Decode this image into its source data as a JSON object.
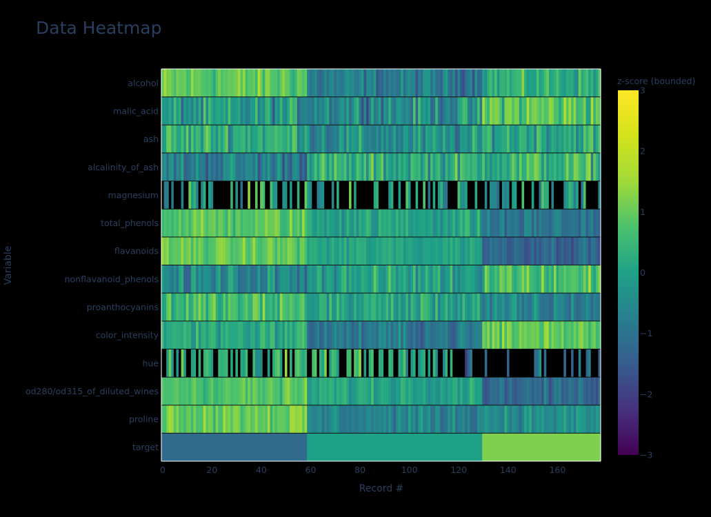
{
  "chart_data": {
    "type": "heatmap",
    "title": "Data Heatmap",
    "xlabel": "Record #",
    "ylabel": "Variable",
    "xlim": [
      0,
      177
    ],
    "x_ticks": [
      "0",
      "20",
      "40",
      "60",
      "80",
      "100",
      "120",
      "140",
      "160"
    ],
    "x_tick_values": [
      0,
      20,
      40,
      60,
      80,
      100,
      120,
      140,
      160
    ],
    "rows": [
      "alcohol",
      "malic_acid",
      "ash",
      "alcalinity_of_ash",
      "magnesium",
      "total_phenols",
      "flavanoids",
      "nonflavanoid_phenols",
      "proanthocyanins",
      "color_intensity",
      "hue",
      "od280/od315_of_diluted_wines",
      "proline",
      "target"
    ],
    "colorscale": "Viridis",
    "colorbar": {
      "title": "z-score (bounded)",
      "range": [
        -3,
        3
      ],
      "ticks": [
        "3",
        "2",
        "1",
        "0",
        "−1",
        "−2",
        "−3"
      ],
      "tick_values": [
        3,
        2,
        1,
        0,
        -1,
        -2,
        -3
      ]
    },
    "masked_color": "#000000",
    "row_profiles": {
      "alcohol": {
        "segments": [
          [
            0,
            59,
            0.9
          ],
          [
            59,
            130,
            -0.85
          ],
          [
            130,
            178,
            0.3
          ]
        ],
        "noise": 0.55
      },
      "malic_acid": {
        "segments": [
          [
            0,
            59,
            -0.3
          ],
          [
            59,
            130,
            -0.4
          ],
          [
            130,
            178,
            0.9
          ]
        ],
        "noise": 0.75
      },
      "ash": {
        "segments": [
          [
            0,
            59,
            0.3
          ],
          [
            59,
            130,
            -0.45
          ],
          [
            130,
            178,
            0.2
          ]
        ],
        "noise": 0.7
      },
      "alcalinity_of_ash": {
        "segments": [
          [
            0,
            59,
            -0.75
          ],
          [
            59,
            130,
            0.2
          ],
          [
            130,
            178,
            0.45
          ]
        ],
        "noise": 0.7
      },
      "magnesium": {
        "segments": [
          [
            0,
            59,
            0.0
          ],
          [
            59,
            130,
            -0.2
          ],
          [
            130,
            178,
            -0.1
          ]
        ],
        "noise": 0.9,
        "mask_rate": 0.52
      },
      "total_phenols": {
        "segments": [
          [
            0,
            59,
            0.85
          ],
          [
            59,
            130,
            0.05
          ],
          [
            130,
            178,
            -0.95
          ]
        ],
        "noise": 0.45
      },
      "flavanoids": {
        "segments": [
          [
            0,
            59,
            0.95
          ],
          [
            59,
            130,
            0.05
          ],
          [
            130,
            178,
            -1.25
          ]
        ],
        "noise": 0.35
      },
      "nonflavanoid_phenols": {
        "segments": [
          [
            0,
            59,
            -0.6
          ],
          [
            59,
            130,
            0.0
          ],
          [
            130,
            178,
            0.75
          ]
        ],
        "noise": 0.65
      },
      "proanthocyanins": {
        "segments": [
          [
            0,
            59,
            0.55
          ],
          [
            59,
            130,
            0.05
          ],
          [
            130,
            178,
            -0.75
          ]
        ],
        "noise": 0.6
      },
      "color_intensity": {
        "segments": [
          [
            0,
            59,
            0.2
          ],
          [
            59,
            130,
            -0.9
          ],
          [
            130,
            178,
            1.0
          ]
        ],
        "noise": 0.5
      },
      "hue": {
        "segments": [
          [
            0,
            59,
            0.35
          ],
          [
            59,
            118,
            0.2
          ],
          [
            118,
            178,
            -1.0
          ]
        ],
        "noise": 0.65,
        "mask_rate": 0.4,
        "mask_from": 118
      },
      "od280/od315_of_diluted_wines": {
        "segments": [
          [
            0,
            59,
            0.8
          ],
          [
            59,
            130,
            0.1
          ],
          [
            130,
            178,
            -1.2
          ]
        ],
        "noise": 0.4
      },
      "proline": {
        "segments": [
          [
            0,
            59,
            1.1
          ],
          [
            59,
            130,
            -0.65
          ],
          [
            130,
            178,
            -0.4
          ]
        ],
        "noise": 0.45
      },
      "target": {
        "segments": [
          [
            0,
            59,
            -1.2
          ],
          [
            59,
            130,
            0.0
          ],
          [
            130,
            178,
            1.2
          ]
        ],
        "noise": 0.0
      }
    }
  }
}
